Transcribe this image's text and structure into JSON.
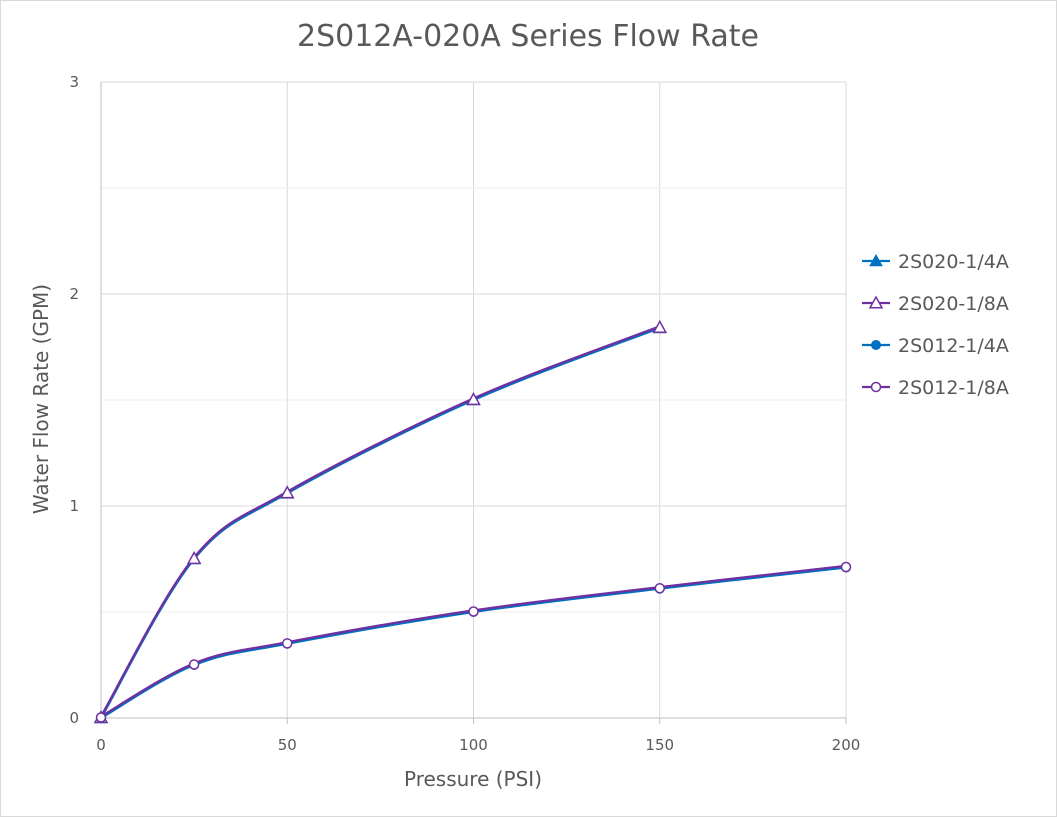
{
  "chart_data": {
    "type": "line",
    "title": "2S012A-020A Series Flow Rate",
    "xlabel": "Pressure (PSI)",
    "ylabel": "Water Flow Rate (GPM)",
    "xlim": [
      0,
      200
    ],
    "ylim": [
      0,
      3
    ],
    "x_ticks": [
      0,
      50,
      100,
      150,
      200
    ],
    "y_ticks": [
      0,
      1,
      2,
      3
    ],
    "grid": true,
    "smooth": true,
    "legend_position": "right",
    "series": [
      {
        "name": "2S020-1/4A",
        "color": "#0070c0",
        "marker": "triangle-filled",
        "x": [
          0,
          25,
          50,
          100,
          150
        ],
        "y": [
          0,
          0.75,
          1.06,
          1.5,
          1.84
        ]
      },
      {
        "name": "2S020-1/8A",
        "color": "#7030a0",
        "marker": "triangle-open",
        "x": [
          0,
          25,
          50,
          100,
          150
        ],
        "y": [
          0,
          0.75,
          1.06,
          1.5,
          1.84
        ]
      },
      {
        "name": "2S012-1/4A",
        "color": "#0070c0",
        "marker": "circle-filled",
        "x": [
          0,
          25,
          50,
          100,
          150,
          200
        ],
        "y": [
          0,
          0.25,
          0.35,
          0.5,
          0.61,
          0.71
        ]
      },
      {
        "name": "2S012-1/8A",
        "color": "#7030a0",
        "marker": "circle-open",
        "x": [
          0,
          25,
          50,
          100,
          150,
          200
        ],
        "y": [
          0,
          0.25,
          0.35,
          0.5,
          0.61,
          0.71
        ]
      }
    ]
  }
}
